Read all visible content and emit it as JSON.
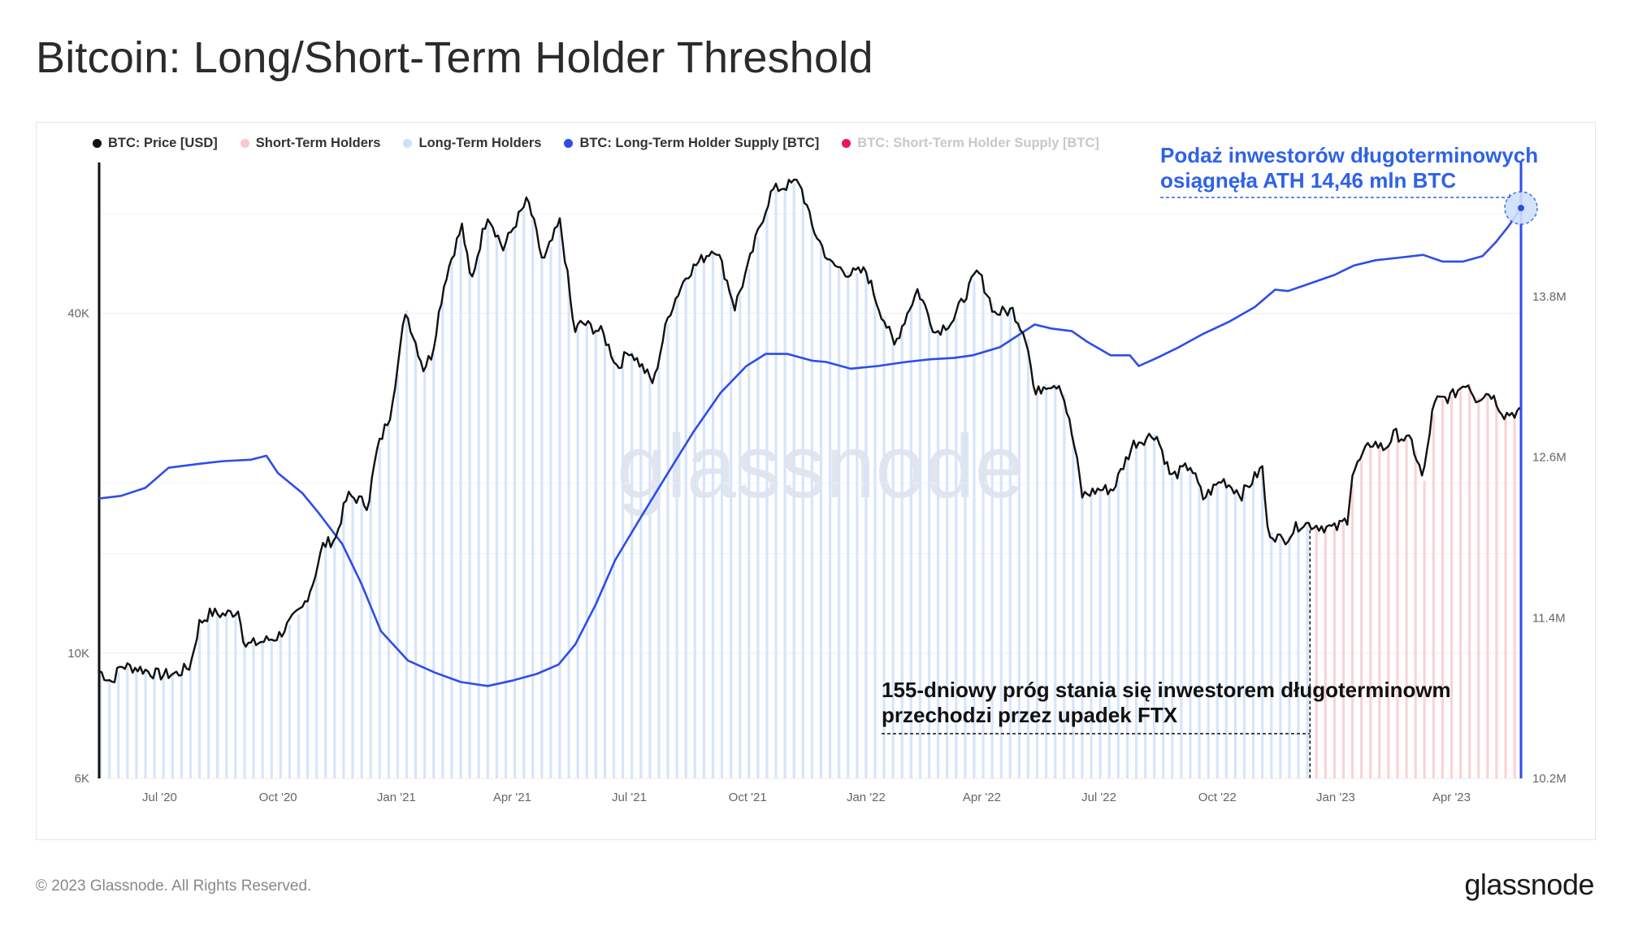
{
  "title": "Bitcoin: Long/Short-Term Holder Threshold",
  "legend": [
    {
      "label": "BTC: Price [USD]",
      "color": "#111111",
      "muted": false
    },
    {
      "label": "Short-Term Holders",
      "color": "#f9c9cb",
      "muted": false
    },
    {
      "label": "Long-Term Holders",
      "color": "#cfe0fb",
      "muted": false
    },
    {
      "label": "BTC: Long-Term Holder Supply [BTC]",
      "color": "#2e4de8",
      "muted": false
    },
    {
      "label": "BTC: Short-Term Holder Supply [BTC]",
      "color": "#f0145a",
      "muted": true
    }
  ],
  "annotations": {
    "ath_line1": "Podaż inwestorów długoterminowych",
    "ath_line2": "osiągnęła ATH 14,46 mln BTC",
    "ftx_line1": "155-dniowy próg stania się inwestorem długoterminowm",
    "ftx_line2": "przechodzi przez upadek FTX"
  },
  "watermark": "glassnode",
  "footer": {
    "copyright": "© 2023 Glassnode. All Rights Reserved.",
    "logo": "glassnode"
  },
  "colors": {
    "price": "#111111",
    "lth_supply": "#2e4de8",
    "lth_fill": "#d6e5fc",
    "sth_fill": "#fbd3d4",
    "annotation_blue": "#2e62e8"
  },
  "chart_data": {
    "type": "line",
    "title": "Bitcoin: Long/Short-Term Holder Threshold",
    "x_ticks": [
      "Jul '20",
      "Oct '20",
      "Jan '21",
      "Apr '21",
      "Jul '21",
      "Oct '21",
      "Jan '22",
      "Apr '22",
      "Jul '22",
      "Oct '22",
      "Jan '23",
      "Apr '23"
    ],
    "x_range": [
      "2020-05-15",
      "2023-05-25"
    ],
    "y_left": {
      "scale": "log",
      "ticks": [
        "6K",
        "10K",
        "40K"
      ],
      "tick_values": [
        6000,
        10000,
        40000
      ],
      "range": [
        6000,
        74000
      ]
    },
    "y_right": {
      "scale": "linear",
      "ticks": [
        "10.2M",
        "11.4M",
        "12.6M",
        "13.8M"
      ],
      "tick_values": [
        10200000,
        11400000,
        12600000,
        13800000
      ],
      "range": [
        10200000,
        14800000
      ]
    },
    "grid": true,
    "legend_position": "top-left",
    "regions": [
      {
        "name": "Long-Term Holders",
        "from": "2020-05-15",
        "to": "2022-12-12"
      },
      {
        "name": "Short-Term Holders",
        "from": "2022-12-12",
        "to": "2023-05-25"
      }
    ],
    "series": [
      {
        "name": "BTC: Price [USD]",
        "axis": "left",
        "points": [
          [
            "2020-05-15",
            9300
          ],
          [
            "2020-05-25",
            8900
          ],
          [
            "2020-06-01",
            9500
          ],
          [
            "2020-06-15",
            9400
          ],
          [
            "2020-07-01",
            9150
          ],
          [
            "2020-07-15",
            9200
          ],
          [
            "2020-07-25",
            9500
          ],
          [
            "2020-08-01",
            11300
          ],
          [
            "2020-08-10",
            11800
          ],
          [
            "2020-08-20",
            11700
          ],
          [
            "2020-09-01",
            11900
          ],
          [
            "2020-09-05",
            10300
          ],
          [
            "2020-09-20",
            10500
          ],
          [
            "2020-10-01",
            10700
          ],
          [
            "2020-10-10",
            11300
          ],
          [
            "2020-10-20",
            12000
          ],
          [
            "2020-10-28",
            13300
          ],
          [
            "2020-11-05",
            15500
          ],
          [
            "2020-11-15",
            16000
          ],
          [
            "2020-11-24",
            19000
          ],
          [
            "2020-12-01",
            18800
          ],
          [
            "2020-12-10",
            18300
          ],
          [
            "2020-12-17",
            22800
          ],
          [
            "2020-12-27",
            26500
          ],
          [
            "2021-01-03",
            33000
          ],
          [
            "2021-01-08",
            40500
          ],
          [
            "2021-01-15",
            36000
          ],
          [
            "2021-01-22",
            32000
          ],
          [
            "2021-01-29",
            34000
          ],
          [
            "2021-02-08",
            46000
          ],
          [
            "2021-02-21",
            57000
          ],
          [
            "2021-02-28",
            45000
          ],
          [
            "2021-03-13",
            60000
          ],
          [
            "2021-03-25",
            52000
          ],
          [
            "2021-04-13",
            63500
          ],
          [
            "2021-04-25",
            49000
          ],
          [
            "2021-05-08",
            58000
          ],
          [
            "2021-05-19",
            37000
          ],
          [
            "2021-05-25",
            38500
          ],
          [
            "2021-06-10",
            37000
          ],
          [
            "2021-06-22",
            32000
          ],
          [
            "2021-07-01",
            34500
          ],
          [
            "2021-07-20",
            30000
          ],
          [
            "2021-08-01",
            40000
          ],
          [
            "2021-08-15",
            47000
          ],
          [
            "2021-09-06",
            52500
          ],
          [
            "2021-09-21",
            41000
          ],
          [
            "2021-10-01",
            48000
          ],
          [
            "2021-10-20",
            66000
          ],
          [
            "2021-11-10",
            68500
          ],
          [
            "2021-11-20",
            57000
          ],
          [
            "2021-12-04",
            49000
          ],
          [
            "2021-12-20",
            47000
          ],
          [
            "2022-01-01",
            47500
          ],
          [
            "2022-01-10",
            41500
          ],
          [
            "2022-01-23",
            35000
          ],
          [
            "2022-02-10",
            44000
          ],
          [
            "2022-02-24",
            37000
          ],
          [
            "2022-03-10",
            39000
          ],
          [
            "2022-03-29",
            47500
          ],
          [
            "2022-04-11",
            40000
          ],
          [
            "2022-04-25",
            40500
          ],
          [
            "2022-05-06",
            36000
          ],
          [
            "2022-05-12",
            28500
          ],
          [
            "2022-05-20",
            30000
          ],
          [
            "2022-06-01",
            30000
          ],
          [
            "2022-06-13",
            22500
          ],
          [
            "2022-06-18",
            19000
          ],
          [
            "2022-07-01",
            19500
          ],
          [
            "2022-07-12",
            19500
          ],
          [
            "2022-07-28",
            23500
          ],
          [
            "2022-08-14",
            24500
          ],
          [
            "2022-08-26",
            20500
          ],
          [
            "2022-09-10",
            21500
          ],
          [
            "2022-09-20",
            18800
          ],
          [
            "2022-10-05",
            20300
          ],
          [
            "2022-10-20",
            19100
          ],
          [
            "2022-11-05",
            21300
          ],
          [
            "2022-11-09",
            16500
          ],
          [
            "2022-11-21",
            15800
          ],
          [
            "2022-12-05",
            17000
          ],
          [
            "2022-12-20",
            16800
          ],
          [
            "2023-01-01",
            16600
          ],
          [
            "2023-01-10",
            17300
          ],
          [
            "2023-01-14",
            20800
          ],
          [
            "2023-01-29",
            23700
          ],
          [
            "2023-02-08",
            23000
          ],
          [
            "2023-02-16",
            24500
          ],
          [
            "2023-03-01",
            23600
          ],
          [
            "2023-03-10",
            20200
          ],
          [
            "2023-03-17",
            26500
          ],
          [
            "2023-03-20",
            28000
          ],
          [
            "2023-04-01",
            28500
          ],
          [
            "2023-04-13",
            30300
          ],
          [
            "2023-04-20",
            28300
          ],
          [
            "2023-05-01",
            29000
          ],
          [
            "2023-05-12",
            26500
          ],
          [
            "2023-05-25",
            26800
          ]
        ]
      },
      {
        "name": "BTC: Long-Term Holder Supply [BTC]",
        "axis": "right",
        "points": [
          [
            "2020-05-15",
            12290000
          ],
          [
            "2020-06-01",
            12310000
          ],
          [
            "2020-06-20",
            12370000
          ],
          [
            "2020-07-08",
            12520000
          ],
          [
            "2020-08-01",
            12550000
          ],
          [
            "2020-08-20",
            12570000
          ],
          [
            "2020-09-10",
            12580000
          ],
          [
            "2020-09-22",
            12610000
          ],
          [
            "2020-10-01",
            12480000
          ],
          [
            "2020-10-20",
            12330000
          ],
          [
            "2020-11-01",
            12190000
          ],
          [
            "2020-11-20",
            11950000
          ],
          [
            "2020-12-05",
            11650000
          ],
          [
            "2020-12-20",
            11300000
          ],
          [
            "2021-01-10",
            11080000
          ],
          [
            "2021-01-31",
            10990000
          ],
          [
            "2021-02-20",
            10920000
          ],
          [
            "2021-03-13",
            10890000
          ],
          [
            "2021-04-01",
            10930000
          ],
          [
            "2021-04-20",
            10980000
          ],
          [
            "2021-05-07",
            11050000
          ],
          [
            "2021-05-20",
            11200000
          ],
          [
            "2021-06-05",
            11500000
          ],
          [
            "2021-06-20",
            11830000
          ],
          [
            "2021-07-10",
            12150000
          ],
          [
            "2021-07-31",
            12480000
          ],
          [
            "2021-08-20",
            12790000
          ],
          [
            "2021-09-10",
            13080000
          ],
          [
            "2021-09-30",
            13280000
          ],
          [
            "2021-10-15",
            13370000
          ],
          [
            "2021-11-01",
            13370000
          ],
          [
            "2021-11-20",
            13320000
          ],
          [
            "2021-12-01",
            13310000
          ],
          [
            "2021-12-20",
            13260000
          ],
          [
            "2022-01-10",
            13280000
          ],
          [
            "2022-02-01",
            13310000
          ],
          [
            "2022-02-20",
            13330000
          ],
          [
            "2022-03-10",
            13340000
          ],
          [
            "2022-03-25",
            13360000
          ],
          [
            "2022-04-15",
            13420000
          ],
          [
            "2022-05-01",
            13520000
          ],
          [
            "2022-05-12",
            13590000
          ],
          [
            "2022-05-25",
            13560000
          ],
          [
            "2022-06-10",
            13540000
          ],
          [
            "2022-06-22",
            13460000
          ],
          [
            "2022-07-10",
            13360000
          ],
          [
            "2022-07-25",
            13360000
          ],
          [
            "2022-08-01",
            13280000
          ],
          [
            "2022-08-15",
            13340000
          ],
          [
            "2022-09-01",
            13420000
          ],
          [
            "2022-09-20",
            13520000
          ],
          [
            "2022-10-10",
            13610000
          ],
          [
            "2022-10-30",
            13720000
          ],
          [
            "2022-11-15",
            13850000
          ],
          [
            "2022-11-25",
            13840000
          ],
          [
            "2022-12-10",
            13890000
          ],
          [
            "2022-12-31",
            13960000
          ],
          [
            "2023-01-15",
            14030000
          ],
          [
            "2023-02-01",
            14070000
          ],
          [
            "2023-02-20",
            14090000
          ],
          [
            "2023-03-10",
            14110000
          ],
          [
            "2023-03-25",
            14060000
          ],
          [
            "2023-04-10",
            14060000
          ],
          [
            "2023-04-25",
            14100000
          ],
          [
            "2023-05-05",
            14200000
          ],
          [
            "2023-05-15",
            14320000
          ],
          [
            "2023-05-25",
            14460000
          ]
        ]
      }
    ],
    "markers": [
      {
        "name": "ATH LTH supply",
        "date": "2023-05-25",
        "value": 14460000,
        "axis": "right"
      },
      {
        "name": "STH/LTH threshold",
        "date": "2022-12-12"
      }
    ]
  }
}
